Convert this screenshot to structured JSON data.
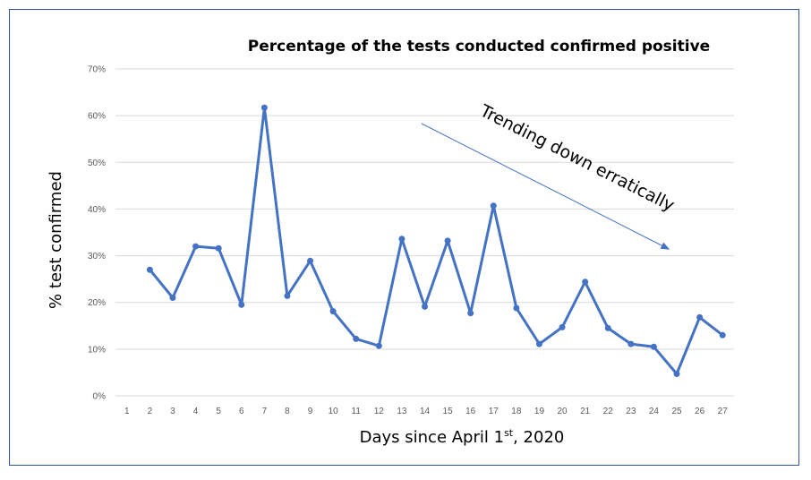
{
  "chart_data": {
    "type": "line",
    "title": "Percentage of the tests conducted confirmed positive",
    "xlabel": "Days since April 1",
    "xlabel_sup": "st",
    "xlabel_suffix": ", 2020",
    "ylabel": "% test confirmed",
    "ylim": [
      0,
      70
    ],
    "yticks": [
      "0%",
      "10%",
      "20%",
      "30%",
      "40%",
      "50%",
      "60%",
      "70%"
    ],
    "categories": [
      "1",
      "2",
      "3",
      "4",
      "5",
      "6",
      "7",
      "8",
      "9",
      "10",
      "11",
      "12",
      "13",
      "14",
      "15",
      "16",
      "17",
      "18",
      "19",
      "20",
      "21",
      "22",
      "23",
      "24",
      "25",
      "26",
      "27"
    ],
    "series": [
      {
        "color": "#4472c4",
        "values": [
          null,
          27.0,
          21.0,
          32.0,
          31.6,
          19.5,
          61.7,
          21.4,
          28.9,
          18.1,
          12.2,
          10.7,
          33.6,
          19.1,
          33.2,
          17.7,
          40.7,
          18.8,
          11.1,
          14.7,
          24.4,
          14.5,
          11.1,
          10.5,
          4.7,
          16.8,
          13.0
        ]
      }
    ],
    "grid": true,
    "annotation": {
      "text": "Trending down erratically",
      "arrow_color": "#4472c4"
    }
  }
}
